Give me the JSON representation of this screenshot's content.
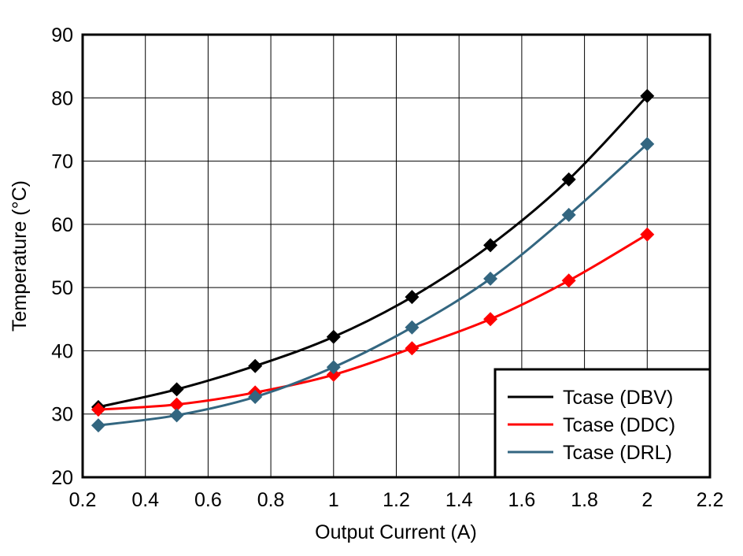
{
  "chart_data": {
    "type": "line",
    "title": "",
    "xlabel": "Output Current (A)",
    "ylabel": "Temperature (°C)",
    "xlim": [
      0.2,
      2.2
    ],
    "ylim": [
      20,
      90
    ],
    "xticks": [
      "0.2",
      "0.4",
      "0.6",
      "0.8",
      "1",
      "1.2",
      "1.4",
      "1.6",
      "1.8",
      "2",
      "2.2"
    ],
    "yticks": [
      "20",
      "30",
      "40",
      "50",
      "60",
      "70",
      "80",
      "90"
    ],
    "grid": true,
    "legend_position": "bottom-right",
    "x": [
      0.25,
      0.5,
      0.75,
      1.0,
      1.25,
      1.5,
      1.75,
      2.0
    ],
    "series": [
      {
        "name": "Tcase (DBV)",
        "color": "#000000",
        "marker": "diamond",
        "values": [
          31.1,
          33.9,
          37.6,
          42.2,
          48.5,
          56.7,
          67.1,
          80.3
        ]
      },
      {
        "name": "Tcase (DDC)",
        "color": "#ff0000",
        "marker": "diamond",
        "values": [
          30.7,
          31.5,
          33.4,
          36.2,
          40.4,
          45.0,
          51.1,
          58.4
        ]
      },
      {
        "name": "Tcase (DRL)",
        "color": "#336680",
        "marker": "diamond",
        "values": [
          28.2,
          29.8,
          32.7,
          37.4,
          43.7,
          51.4,
          61.5,
          72.7
        ]
      }
    ]
  }
}
